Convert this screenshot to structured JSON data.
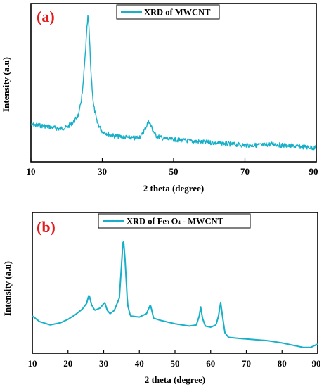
{
  "colors": {
    "series": "#17b0c8",
    "axis": "#000000",
    "panel_label": "#e31b1b"
  },
  "chart_data": [
    {
      "type": "line",
      "panel_label": "(a)",
      "xlabel": "2 theta (degree)",
      "ylabel": "Intensity (a.u)",
      "xlim": [
        10,
        90
      ],
      "xticks": [
        "10",
        "30",
        "50",
        "70",
        "90"
      ],
      "legend": "top-center",
      "grid": false,
      "series": [
        {
          "name": "XRD of MWCNT",
          "x": [
            10,
            14,
            18,
            20,
            22,
            23.5,
            24.5,
            25.2,
            25.7,
            26,
            26.3,
            26.8,
            27.5,
            28.5,
            30,
            33,
            36,
            39,
            41,
            42.2,
            43,
            44,
            45,
            47,
            50,
            55,
            60,
            65,
            70,
            75,
            78,
            80,
            85,
            90
          ],
          "y": [
            0.2,
            0.19,
            0.17,
            0.18,
            0.22,
            0.28,
            0.45,
            0.7,
            0.9,
            1.0,
            0.9,
            0.6,
            0.35,
            0.22,
            0.15,
            0.12,
            0.11,
            0.1,
            0.12,
            0.18,
            0.23,
            0.17,
            0.12,
            0.1,
            0.09,
            0.08,
            0.07,
            0.06,
            0.05,
            0.05,
            0.06,
            0.05,
            0.04,
            0.03
          ]
        }
      ]
    },
    {
      "type": "line",
      "panel_label": "(b)",
      "xlabel": "2 theta (degree)",
      "ylabel": "Intensity (a.u)",
      "xlim": [
        10,
        90
      ],
      "xticks": [
        "10",
        "20",
        "30",
        "40",
        "50",
        "60",
        "70",
        "80",
        "90"
      ],
      "legend": "top-center",
      "grid": false,
      "series": [
        {
          "name": "XRD of Fe₃O₄ - MWCNT",
          "name_parts": [
            "XRD of Fe",
            "3",
            " O",
            "4",
            "  - MWCNT"
          ],
          "x": [
            10,
            12,
            15,
            18,
            20,
            22,
            24,
            25.2,
            25.9,
            26.6,
            27.5,
            29,
            30.3,
            31,
            31.8,
            33,
            34.4,
            35,
            35.5,
            36,
            36.7,
            37.5,
            40,
            42,
            43.1,
            44,
            46,
            50,
            54,
            56,
            56.8,
            57.2,
            57.7,
            58.5,
            60,
            61.5,
            62.2,
            62.8,
            63.3,
            64,
            65,
            68,
            72,
            76,
            80,
            83,
            86,
            88,
            90
          ],
          "y": [
            0.3,
            0.25,
            0.22,
            0.24,
            0.27,
            0.31,
            0.36,
            0.41,
            0.49,
            0.4,
            0.35,
            0.37,
            0.42,
            0.35,
            0.32,
            0.35,
            0.46,
            0.75,
            1.0,
            0.8,
            0.4,
            0.3,
            0.29,
            0.32,
            0.4,
            0.28,
            0.26,
            0.23,
            0.21,
            0.22,
            0.3,
            0.38,
            0.28,
            0.21,
            0.2,
            0.22,
            0.3,
            0.42,
            0.3,
            0.15,
            0.11,
            0.1,
            0.09,
            0.08,
            0.06,
            0.04,
            0.02,
            0.02,
            0.05
          ]
        }
      ]
    }
  ]
}
